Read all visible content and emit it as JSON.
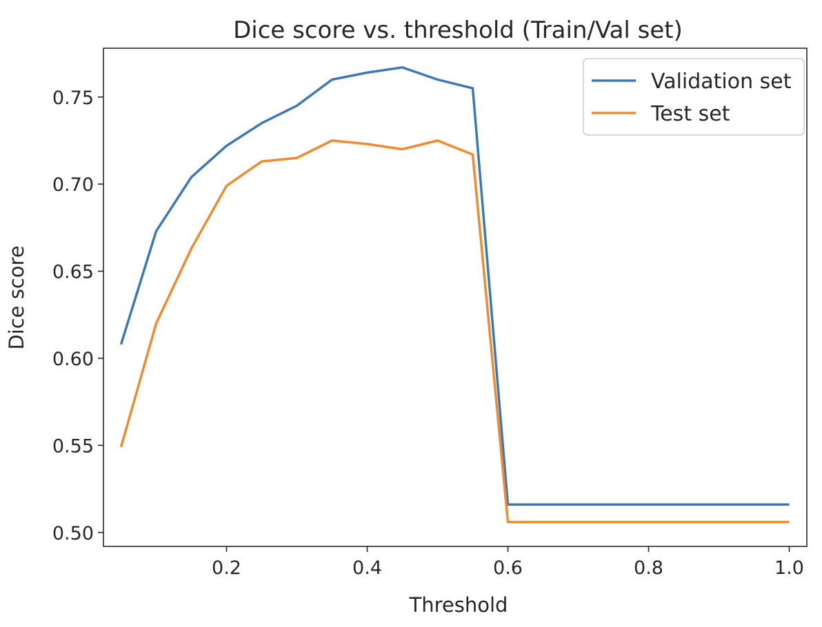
{
  "chart_data": {
    "type": "line",
    "title": "Dice score vs. threshold (Train/Val set)",
    "xlabel": "Threshold",
    "ylabel": "Dice score",
    "xlim": [
      0.025,
      1.025
    ],
    "ylim": [
      0.492,
      0.778
    ],
    "xticks": [
      0.2,
      0.4,
      0.6,
      0.8,
      1.0
    ],
    "xtick_labels": [
      "0.2",
      "0.4",
      "0.6",
      "0.8",
      "1.0"
    ],
    "yticks": [
      0.5,
      0.55,
      0.6,
      0.65,
      0.7,
      0.75
    ],
    "ytick_labels": [
      "0.50",
      "0.55",
      "0.60",
      "0.65",
      "0.70",
      "0.75"
    ],
    "grid": false,
    "legend_position": "top-right",
    "x": [
      0.05,
      0.1,
      0.15,
      0.2,
      0.25,
      0.3,
      0.35,
      0.4,
      0.45,
      0.5,
      0.55,
      0.6,
      0.65,
      0.7,
      0.75,
      0.8,
      0.85,
      0.9,
      0.95,
      1.0
    ],
    "series": [
      {
        "name": "Validation set",
        "color": "#3b78b8",
        "values": [
          0.608,
          0.673,
          0.704,
          0.722,
          0.735,
          0.745,
          0.76,
          0.764,
          0.767,
          0.76,
          0.755,
          0.516,
          0.516,
          0.516,
          0.516,
          0.516,
          0.516,
          0.516,
          0.516,
          0.516
        ]
      },
      {
        "name": "Test set",
        "color": "#f08a2c",
        "values": [
          0.549,
          0.62,
          0.663,
          0.699,
          0.713,
          0.715,
          0.725,
          0.723,
          0.72,
          0.725,
          0.717,
          0.506,
          0.506,
          0.506,
          0.506,
          0.506,
          0.506,
          0.506,
          0.506,
          0.506
        ]
      }
    ]
  }
}
